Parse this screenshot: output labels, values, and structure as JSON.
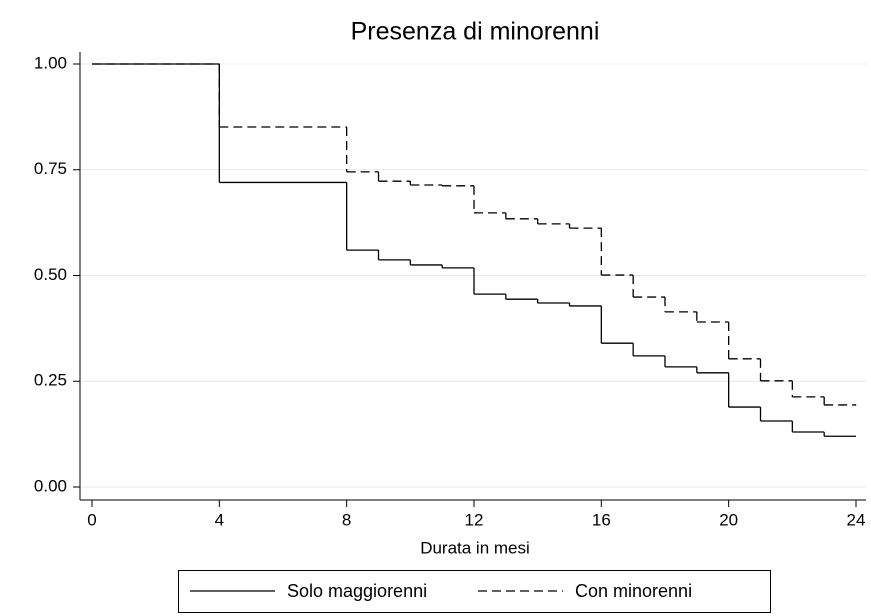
{
  "chart_data": {
    "type": "line",
    "drawstyle": "steps-post",
    "title": "Presenza di minorenni",
    "x_label": "Durata in mesi",
    "x": [
      0,
      4,
      8,
      9,
      10,
      11,
      12,
      13,
      14,
      15,
      16,
      17,
      18,
      19,
      20,
      21,
      22,
      23,
      24
    ],
    "series": [
      {
        "name": "Solo maggiorenni",
        "color": "#000000",
        "dash": "none",
        "values": [
          1.0,
          0.72,
          0.56,
          0.537,
          0.525,
          0.518,
          0.456,
          0.444,
          0.435,
          0.428,
          0.34,
          0.31,
          0.284,
          0.27,
          0.189,
          0.156,
          0.13,
          0.12,
          0.12
        ]
      },
      {
        "name": "Con minorenni",
        "color": "#000000",
        "dash": "9 5",
        "values": [
          1.0,
          0.851,
          0.745,
          0.723,
          0.714,
          0.712,
          0.648,
          0.634,
          0.622,
          0.612,
          0.501,
          0.449,
          0.414,
          0.39,
          0.303,
          0.251,
          0.213,
          0.194,
          0.194
        ]
      }
    ],
    "xlim": [
      0,
      24
    ],
    "ylim": [
      0,
      1
    ],
    "xticks": [
      0,
      4,
      8,
      12,
      16,
      20,
      24
    ],
    "yticks": [
      {
        "value": 0,
        "label": "0.00"
      },
      {
        "value": 0.25,
        "label": "0.25"
      },
      {
        "value": 0.5,
        "label": "0.50"
      },
      {
        "value": 0.75,
        "label": "0.75"
      },
      {
        "value": 1,
        "label": "1.00"
      }
    ],
    "grid": true,
    "legend": "bottom"
  }
}
